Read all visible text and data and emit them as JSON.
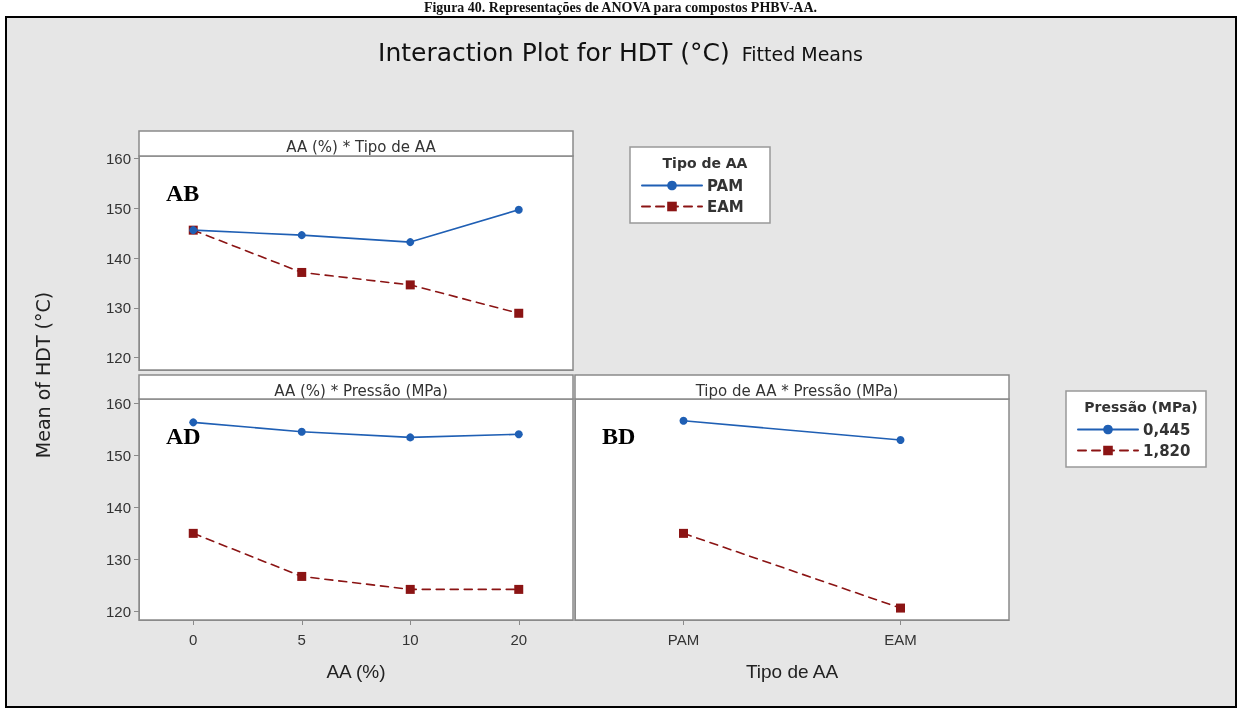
{
  "chart_data": [
    {
      "type": "line",
      "title": "AA (%) * Tipo de AA",
      "subtitle": "Interaction Plot for HDT (°C)",
      "ylabel": "Mean of HDT (°C)",
      "annotations": [
        "AB",
        "Fitted Means",
        "Figura 40. Representações de ANOVA para compostos PHBV-AA."
      ],
      "legend_title": "Tipo de AA",
      "legend": "right",
      "tick_labels": "y",
      "categories": [
        "0",
        "5",
        "10",
        "20"
      ],
      "ylim": [
        117.5,
        160.5
      ],
      "yticks": [
        120,
        130,
        140,
        150,
        160
      ],
      "series": [
        {
          "name": "PAM",
          "color": "#1f5fb4",
          "marker": "circle",
          "line_style": "solid",
          "values": [
            145.6,
            144.6,
            143.2,
            149.7
          ]
        },
        {
          "name": "EAM",
          "color": "#8b1414",
          "marker": "square",
          "line_style": "dashed",
          "values": [
            145.6,
            137.1,
            134.6,
            128.9
          ]
        }
      ]
    },
    {
      "type": "line",
      "title": "AA (%) * Pressão (MPa)",
      "xlabel": "AA (%)",
      "annotations": [
        "AD"
      ],
      "categories": [
        "0",
        "5",
        "10",
        "20"
      ],
      "ylim": [
        118.3,
        160.9
      ],
      "yticks": [
        120,
        130,
        140,
        150,
        160
      ],
      "series": [
        {
          "color": "#1f5fb4",
          "marker": "circle",
          "line_style": "solid",
          "values": [
            156.4,
            154.6,
            153.5,
            154.1
          ]
        },
        {
          "color": "#8b1414",
          "marker": "square",
          "line_style": "dashed",
          "values": [
            135.0,
            126.7,
            124.2,
            124.2
          ]
        }
      ]
    },
    {
      "type": "line",
      "title": "Tipo de AA * Pressão (MPa)",
      "xlabel": "Tipo de AA",
      "annotations": [
        "BD"
      ],
      "legend_title": "Pressão (MPa)",
      "legend": "right",
      "tick_labels": "x",
      "categories": [
        "PAM",
        "EAM"
      ],
      "ylim": [
        118.3,
        160.9
      ],
      "yticks": [
        120,
        130,
        140,
        150,
        160
      ],
      "series": [
        {
          "name": "0,445",
          "color": "#1f5fb4",
          "marker": "circle",
          "line_style": "solid",
          "values": [
            156.7,
            153.0
          ]
        },
        {
          "name": "1,820",
          "color": "#8b1414",
          "marker": "square",
          "line_style": "dashed",
          "values": [
            135.0,
            120.6
          ]
        }
      ]
    }
  ]
}
